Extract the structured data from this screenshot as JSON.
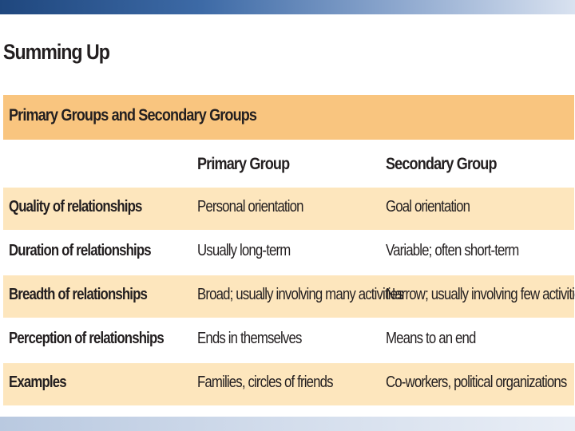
{
  "slide": {
    "title": "Summing Up"
  },
  "table": {
    "title": "Primary Groups and Secondary Groups",
    "columns": [
      "Primary Group",
      "Secondary Group"
    ],
    "rows": [
      {
        "label": "Quality of relationships",
        "primary": "Personal orientation",
        "secondary": "Goal orientation"
      },
      {
        "label": "Duration of relationships",
        "primary": "Usually long-term",
        "secondary": "Variable; often short-term"
      },
      {
        "label": "Breadth of relationships",
        "primary": "Broad; usually involving many activities",
        "secondary": "Narrow; usually involving few activities"
      },
      {
        "label": "Perception of relationships",
        "primary": "Ends in themselves",
        "secondary": "Means to an end"
      },
      {
        "label": "Examples",
        "primary": "Families, circles of friends",
        "secondary": "Co-workers, political organizations"
      }
    ]
  },
  "colors": {
    "banner": "#f9c57f",
    "shaded_row": "#fde6bd",
    "top_bar_start": "#1f477e",
    "top_bar_end": "#d9e2f0",
    "bottom_bar": "#c7d4e8"
  }
}
